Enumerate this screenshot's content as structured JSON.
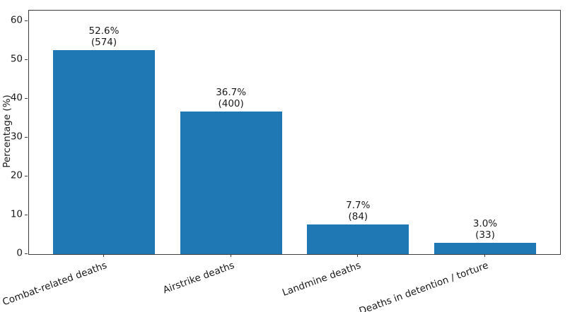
{
  "chart_data": {
    "type": "bar",
    "title": "",
    "xlabel": "",
    "ylabel": "Percentage (%)",
    "categories": [
      "Combat-related deaths",
      "Airstrike deaths",
      "Landmine deaths",
      "Deaths in detention / torture"
    ],
    "values": [
      52.6,
      36.7,
      7.7,
      3.0
    ],
    "counts": [
      574,
      400,
      84,
      33
    ],
    "annotations": [
      {
        "line1": "52.6%",
        "line2": "(574)"
      },
      {
        "line1": "36.7%",
        "line2": "(400)"
      },
      {
        "line1": "7.7%",
        "line2": "(84)"
      },
      {
        "line1": "3.0%",
        "line2": "(33)"
      }
    ],
    "yticks": [
      0,
      10,
      20,
      30,
      40,
      50,
      60
    ],
    "ylim": [
      0,
      62.7
    ],
    "bar_color": "#1f77b4",
    "grid": false,
    "legend_position": "none",
    "xtick_rotation_deg": 20
  }
}
